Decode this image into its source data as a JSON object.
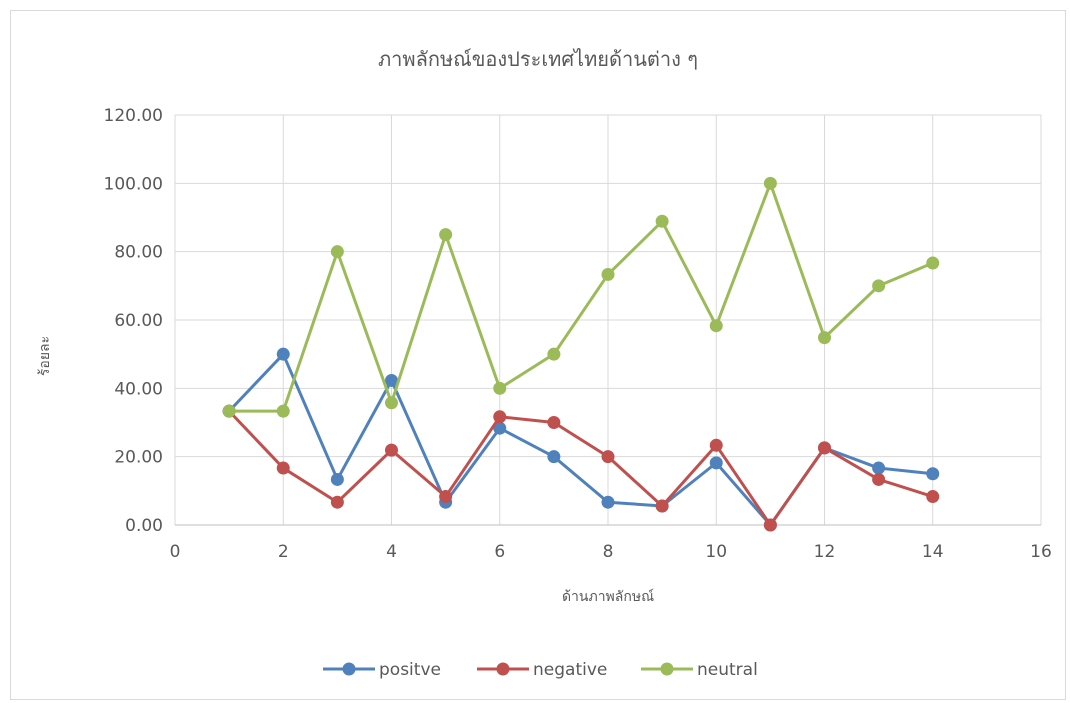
{
  "chart_data": {
    "type": "line",
    "title": "ภาพลักษณ์ของประเทศไทยด้านต่าง ๆ",
    "xlabel": "ด้านภาพลักษณ์",
    "ylabel": "ร้อยละ",
    "xlim": [
      0,
      16
    ],
    "ylim": [
      0,
      120
    ],
    "x_ticks": [
      "0",
      "2",
      "4",
      "6",
      "8",
      "10",
      "12",
      "14",
      "16"
    ],
    "y_ticks": [
      "0.00",
      "20.00",
      "40.00",
      "60.00",
      "80.00",
      "100.00",
      "120.00"
    ],
    "x": [
      1,
      2,
      3,
      4,
      5,
      6,
      7,
      8,
      9,
      10,
      11,
      12,
      13,
      14
    ],
    "grid": true,
    "legend_position": "bottom",
    "series": [
      {
        "name": "positve",
        "color": "#4f81bd",
        "values": [
          33.33,
          50.0,
          13.33,
          42.31,
          6.67,
          28.33,
          20.0,
          6.67,
          5.56,
          18.18,
          0.0,
          22.58,
          16.67,
          15.0
        ]
      },
      {
        "name": "negative",
        "color": "#c0504d",
        "values": [
          33.33,
          16.67,
          6.67,
          21.92,
          8.33,
          31.67,
          30.0,
          20.0,
          5.56,
          23.33,
          0.0,
          22.58,
          13.33,
          8.33
        ]
      },
      {
        "name": "neutral",
        "color": "#9bbb59",
        "values": [
          33.33,
          33.33,
          80.0,
          35.77,
          85.0,
          40.0,
          50.0,
          73.33,
          88.89,
          58.33,
          100.0,
          54.84,
          70.0,
          76.67
        ]
      }
    ]
  }
}
